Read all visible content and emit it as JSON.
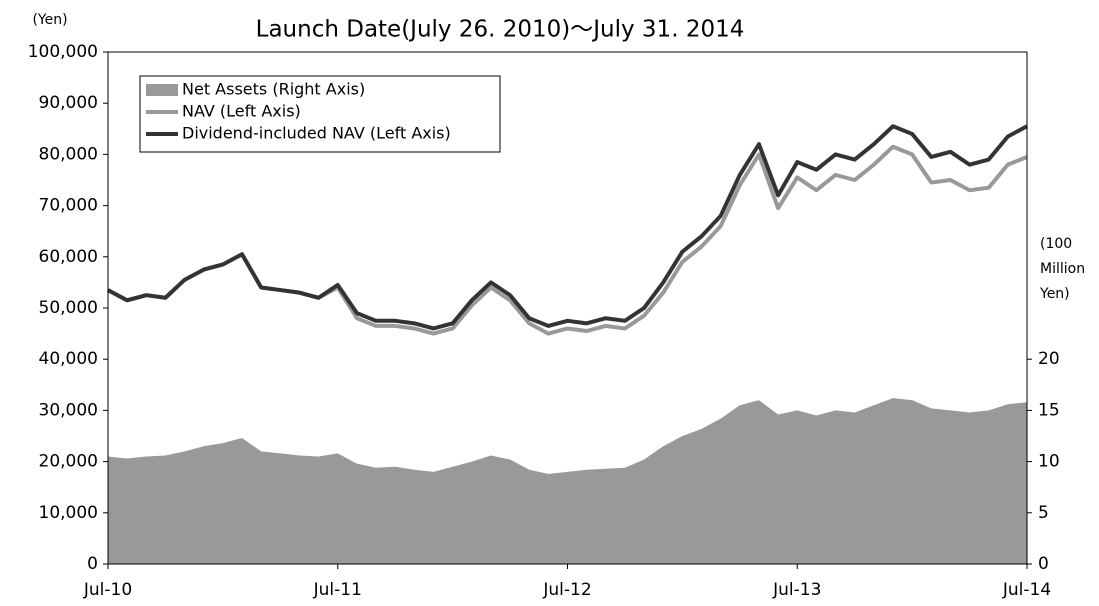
{
  "chart_data": {
    "type": "line",
    "title": "Launch Date(July 26. 2010)〜July 31. 2014",
    "y_label": "(Yen)",
    "y2_label": "(100 Million Yen)",
    "x": [
      "2010-07",
      "2010-08",
      "2010-09",
      "2010-10",
      "2010-11",
      "2010-12",
      "2011-01",
      "2011-02",
      "2011-03",
      "2011-04",
      "2011-05",
      "2011-06",
      "2011-07",
      "2011-08",
      "2011-09",
      "2011-10",
      "2011-11",
      "2011-12",
      "2012-01",
      "2012-02",
      "2012-03",
      "2012-04",
      "2012-05",
      "2012-06",
      "2012-07",
      "2012-08",
      "2012-09",
      "2012-10",
      "2012-11",
      "2012-12",
      "2013-01",
      "2013-02",
      "2013-03",
      "2013-04",
      "2013-05",
      "2013-06",
      "2013-07",
      "2013-08",
      "2013-09",
      "2013-10",
      "2013-11",
      "2013-12",
      "2014-01",
      "2014-02",
      "2014-03",
      "2014-04",
      "2014-05",
      "2014-06",
      "2014-07"
    ],
    "series": [
      {
        "name": "Net Assets (Right Axis)",
        "color": "#999999",
        "axis": "y2",
        "style": "area",
        "values": [
          10.5,
          10.3,
          10.5,
          10.6,
          11,
          11.5,
          11.8,
          12.3,
          11,
          10.8,
          10.6,
          10.5,
          10.8,
          9.8,
          9.4,
          9.5,
          9.2,
          9,
          9.5,
          10,
          10.6,
          10.2,
          9.2,
          8.8,
          9,
          9.2,
          9.3,
          9.4,
          10.2,
          11.5,
          12.5,
          13.2,
          14.2,
          15.5,
          16,
          14.6,
          15,
          14.5,
          15,
          14.8,
          15.5,
          16.2,
          16,
          15.2,
          15,
          14.8,
          15,
          15.6,
          15.8
        ]
      },
      {
        "name": "NAV (Left Axis)",
        "color": "#999999",
        "style": "line",
        "values": [
          53500,
          51500,
          52500,
          52000,
          55500,
          57500,
          58500,
          60500,
          54000,
          53500,
          53000,
          52000,
          54000,
          48000,
          46500,
          46500,
          46000,
          45000,
          46000,
          50500,
          54000,
          51500,
          47000,
          45000,
          46000,
          45500,
          46500,
          46000,
          48500,
          53000,
          59000,
          62000,
          66000,
          74000,
          80000,
          69500,
          75500,
          73000,
          76000,
          75000,
          78000,
          81500,
          80000,
          74500,
          75000,
          73000,
          73500,
          78000,
          79500
        ]
      },
      {
        "name": "Dividend-included NAV (Left Axis)",
        "color": "#333333",
        "style": "line",
        "values": [
          53500,
          51500,
          52500,
          52000,
          55500,
          57500,
          58500,
          60500,
          54000,
          53500,
          53000,
          52000,
          54500,
          49000,
          47500,
          47500,
          47000,
          46000,
          47000,
          51500,
          55000,
          52500,
          48000,
          46500,
          47500,
          47000,
          48000,
          47500,
          50000,
          55000,
          61000,
          64000,
          68000,
          76000,
          82000,
          72000,
          78500,
          77000,
          80000,
          79000,
          82000,
          85500,
          84000,
          79500,
          80500,
          78000,
          79000,
          83500,
          85500
        ]
      }
    ],
    "xlim": [
      "2010-07",
      "2014-07"
    ],
    "xticks": [
      {
        "value": "2010-07",
        "label": "Jul-10"
      },
      {
        "value": "2011-07",
        "label": "Jul-11"
      },
      {
        "value": "2012-07",
        "label": "Jul-12"
      },
      {
        "value": "2013-07",
        "label": "Jul-13"
      },
      {
        "value": "2014-07",
        "label": "Jul-14"
      }
    ],
    "ylim": [
      0,
      100000
    ],
    "yticks": [
      0,
      {
        "value": 10000,
        "label": "10,000"
      },
      {
        "value": 20000,
        "label": "20,000"
      },
      {
        "value": 30000,
        "label": "30,000"
      },
      {
        "value": 40000,
        "label": "40,000"
      },
      {
        "value": 50000,
        "label": "50,000"
      },
      {
        "value": 60000,
        "label": "60,000"
      },
      {
        "value": 70000,
        "label": "70,000"
      },
      {
        "value": 80000,
        "label": "80,000"
      },
      {
        "value": 90000,
        "label": "90,000"
      },
      {
        "value": 100000,
        "label": "100,000"
      }
    ],
    "y2lim": [
      0,
      50
    ],
    "y2ticks": [
      0,
      5,
      10,
      15,
      20
    ],
    "legend": "upper-left"
  }
}
